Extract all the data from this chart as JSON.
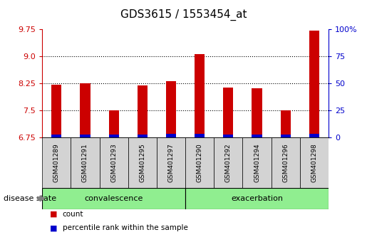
{
  "title": "GDS3615 / 1553454_at",
  "samples": [
    "GSM401289",
    "GSM401291",
    "GSM401293",
    "GSM401295",
    "GSM401297",
    "GSM401290",
    "GSM401292",
    "GSM401294",
    "GSM401296",
    "GSM401298"
  ],
  "count_values": [
    8.2,
    8.25,
    7.5,
    8.18,
    8.3,
    9.06,
    8.12,
    8.1,
    7.5,
    9.7
  ],
  "percentile_values": [
    0.08,
    0.08,
    0.07,
    0.07,
    0.09,
    0.09,
    0.07,
    0.07,
    0.07,
    0.1
  ],
  "ymin": 6.75,
  "ymax": 9.75,
  "yticks": [
    6.75,
    7.5,
    8.25,
    9.0,
    9.75
  ],
  "right_yticks": [
    0,
    25,
    50,
    75,
    100
  ],
  "groups": [
    {
      "label": "convalescence",
      "start": 0,
      "end": 5
    },
    {
      "label": "exacerbation",
      "start": 5,
      "end": 10
    }
  ],
  "group_label": "disease state",
  "bar_color_red": "#cc0000",
  "bar_color_blue": "#0000cc",
  "group_bg_color": "#90ee90",
  "sample_bg_color": "#d3d3d3",
  "legend_count": "count",
  "legend_pct": "percentile rank within the sample",
  "title_fontsize": 11,
  "tick_fontsize": 8,
  "label_fontsize": 8,
  "group_fontsize": 8,
  "bar_width": 0.35
}
